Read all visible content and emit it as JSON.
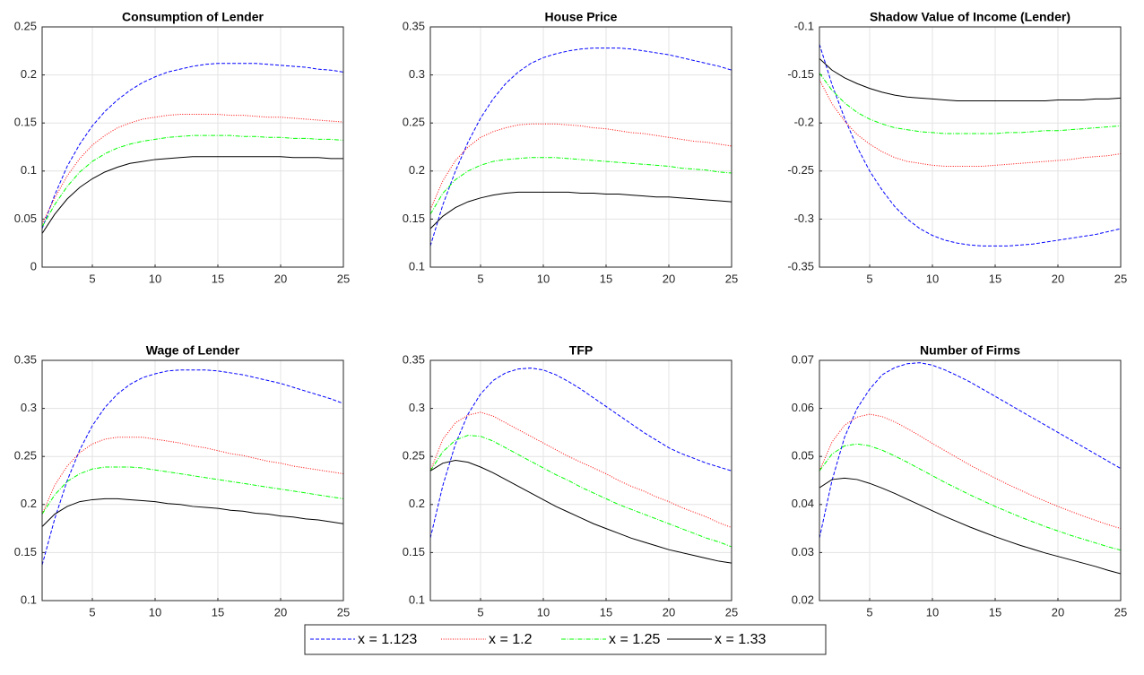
{
  "legend": {
    "entries": [
      {
        "name": "x = 1.123",
        "color": "#0000ff"
      },
      {
        "name": "x = 1.2",
        "color": "#ff0000"
      },
      {
        "name": "x = 1.25",
        "color": "#00ff00"
      },
      {
        "name": "x = 1.33",
        "color": "#000000"
      }
    ]
  },
  "chart_data": [
    {
      "type": "line",
      "title": "Consumption of Lender",
      "grid": true,
      "x": [
        1,
        2,
        3,
        4,
        5,
        6,
        7,
        8,
        9,
        10,
        11,
        12,
        13,
        14,
        15,
        16,
        17,
        18,
        19,
        20,
        21,
        22,
        23,
        24,
        25
      ],
      "xlim": [
        1,
        25
      ],
      "xticks": [
        5,
        10,
        15,
        20,
        25
      ],
      "ylim": [
        0,
        0.25
      ],
      "yticks": [
        0,
        0.05,
        0.1,
        0.15,
        0.2,
        0.25
      ],
      "series": [
        {
          "values": [
            0.04,
            0.075,
            0.105,
            0.128,
            0.147,
            0.162,
            0.174,
            0.184,
            0.192,
            0.198,
            0.203,
            0.206,
            0.209,
            0.211,
            0.212,
            0.212,
            0.212,
            0.212,
            0.211,
            0.21,
            0.209,
            0.208,
            0.206,
            0.205,
            0.203
          ]
        },
        {
          "values": [
            0.045,
            0.072,
            0.095,
            0.113,
            0.127,
            0.137,
            0.145,
            0.15,
            0.154,
            0.156,
            0.158,
            0.159,
            0.159,
            0.159,
            0.159,
            0.158,
            0.158,
            0.157,
            0.156,
            0.156,
            0.155,
            0.154,
            0.153,
            0.152,
            0.151
          ]
        },
        {
          "values": [
            0.042,
            0.065,
            0.084,
            0.099,
            0.11,
            0.118,
            0.124,
            0.128,
            0.131,
            0.133,
            0.135,
            0.136,
            0.137,
            0.137,
            0.137,
            0.137,
            0.136,
            0.136,
            0.135,
            0.135,
            0.134,
            0.134,
            0.133,
            0.133,
            0.132
          ]
        },
        {
          "values": [
            0.035,
            0.055,
            0.071,
            0.083,
            0.092,
            0.099,
            0.104,
            0.108,
            0.11,
            0.112,
            0.113,
            0.114,
            0.115,
            0.115,
            0.115,
            0.115,
            0.115,
            0.115,
            0.115,
            0.115,
            0.114,
            0.114,
            0.114,
            0.113,
            0.113
          ]
        }
      ]
    },
    {
      "type": "line",
      "title": "House Price",
      "grid": true,
      "x": [
        1,
        2,
        3,
        4,
        5,
        6,
        7,
        8,
        9,
        10,
        11,
        12,
        13,
        14,
        15,
        16,
        17,
        18,
        19,
        20,
        21,
        22,
        23,
        24,
        25
      ],
      "xlim": [
        1,
        25
      ],
      "xticks": [
        5,
        10,
        15,
        20,
        25
      ],
      "ylim": [
        0.1,
        0.35
      ],
      "yticks": [
        0.1,
        0.15,
        0.2,
        0.25,
        0.3,
        0.35
      ],
      "series": [
        {
          "values": [
            0.122,
            0.165,
            0.2,
            0.23,
            0.255,
            0.275,
            0.291,
            0.303,
            0.312,
            0.318,
            0.322,
            0.325,
            0.327,
            0.328,
            0.328,
            0.328,
            0.327,
            0.325,
            0.323,
            0.321,
            0.318,
            0.315,
            0.312,
            0.309,
            0.305
          ]
        },
        {
          "values": [
            0.16,
            0.19,
            0.211,
            0.225,
            0.235,
            0.241,
            0.245,
            0.248,
            0.249,
            0.249,
            0.249,
            0.248,
            0.247,
            0.245,
            0.244,
            0.242,
            0.24,
            0.239,
            0.237,
            0.235,
            0.233,
            0.231,
            0.23,
            0.228,
            0.226
          ]
        },
        {
          "values": [
            0.155,
            0.177,
            0.191,
            0.2,
            0.206,
            0.21,
            0.212,
            0.213,
            0.214,
            0.214,
            0.214,
            0.213,
            0.212,
            0.211,
            0.21,
            0.209,
            0.208,
            0.207,
            0.206,
            0.205,
            0.203,
            0.202,
            0.201,
            0.199,
            0.198
          ]
        },
        {
          "values": [
            0.14,
            0.153,
            0.162,
            0.168,
            0.172,
            0.175,
            0.177,
            0.178,
            0.178,
            0.178,
            0.178,
            0.178,
            0.177,
            0.177,
            0.176,
            0.176,
            0.175,
            0.174,
            0.173,
            0.173,
            0.172,
            0.171,
            0.17,
            0.169,
            0.168
          ]
        }
      ]
    },
    {
      "type": "line",
      "title": "Shadow Value of Income (Lender)",
      "grid": true,
      "x": [
        1,
        2,
        3,
        4,
        5,
        6,
        7,
        8,
        9,
        10,
        11,
        12,
        13,
        14,
        15,
        16,
        17,
        18,
        19,
        20,
        21,
        22,
        23,
        24,
        25
      ],
      "xlim": [
        1,
        25
      ],
      "xticks": [
        5,
        10,
        15,
        20,
        25
      ],
      "ylim": [
        -0.35,
        -0.1
      ],
      "yticks": [
        -0.35,
        -0.3,
        -0.25,
        -0.2,
        -0.15,
        -0.1
      ],
      "series": [
        {
          "values": [
            -0.118,
            -0.16,
            -0.195,
            -0.225,
            -0.25,
            -0.27,
            -0.287,
            -0.3,
            -0.31,
            -0.317,
            -0.322,
            -0.325,
            -0.327,
            -0.328,
            -0.328,
            -0.328,
            -0.327,
            -0.326,
            -0.324,
            -0.322,
            -0.32,
            -0.318,
            -0.316,
            -0.313,
            -0.31
          ]
        },
        {
          "values": [
            -0.155,
            -0.18,
            -0.198,
            -0.212,
            -0.222,
            -0.23,
            -0.236,
            -0.24,
            -0.242,
            -0.244,
            -0.245,
            -0.245,
            -0.245,
            -0.245,
            -0.244,
            -0.243,
            -0.242,
            -0.241,
            -0.24,
            -0.239,
            -0.238,
            -0.236,
            -0.235,
            -0.234,
            -0.232
          ]
        },
        {
          "values": [
            -0.148,
            -0.166,
            -0.179,
            -0.189,
            -0.196,
            -0.201,
            -0.205,
            -0.207,
            -0.209,
            -0.21,
            -0.211,
            -0.211,
            -0.211,
            -0.211,
            -0.211,
            -0.21,
            -0.21,
            -0.209,
            -0.208,
            -0.208,
            -0.207,
            -0.206,
            -0.205,
            -0.204,
            -0.203
          ]
        },
        {
          "values": [
            -0.133,
            -0.145,
            -0.153,
            -0.159,
            -0.164,
            -0.168,
            -0.171,
            -0.173,
            -0.174,
            -0.175,
            -0.176,
            -0.177,
            -0.177,
            -0.177,
            -0.177,
            -0.177,
            -0.177,
            -0.177,
            -0.177,
            -0.176,
            -0.176,
            -0.176,
            -0.175,
            -0.175,
            -0.174
          ]
        }
      ]
    },
    {
      "type": "line",
      "title": "Wage of Lender",
      "grid": true,
      "x": [
        1,
        2,
        3,
        4,
        5,
        6,
        7,
        8,
        9,
        10,
        11,
        12,
        13,
        14,
        15,
        16,
        17,
        18,
        19,
        20,
        21,
        22,
        23,
        24,
        25
      ],
      "xlim": [
        1,
        25
      ],
      "xticks": [
        5,
        10,
        15,
        20,
        25
      ],
      "ylim": [
        0.1,
        0.35
      ],
      "yticks": [
        0.1,
        0.15,
        0.2,
        0.25,
        0.3,
        0.35
      ],
      "series": [
        {
          "values": [
            0.137,
            0.185,
            0.225,
            0.257,
            0.282,
            0.301,
            0.315,
            0.325,
            0.332,
            0.336,
            0.339,
            0.34,
            0.34,
            0.34,
            0.339,
            0.337,
            0.335,
            0.332,
            0.329,
            0.326,
            0.322,
            0.318,
            0.314,
            0.31,
            0.305
          ]
        },
        {
          "values": [
            0.19,
            0.22,
            0.24,
            0.254,
            0.263,
            0.268,
            0.27,
            0.27,
            0.27,
            0.268,
            0.266,
            0.264,
            0.261,
            0.259,
            0.256,
            0.253,
            0.251,
            0.248,
            0.245,
            0.243,
            0.24,
            0.238,
            0.236,
            0.234,
            0.232
          ]
        },
        {
          "values": [
            0.19,
            0.21,
            0.224,
            0.232,
            0.237,
            0.239,
            0.239,
            0.239,
            0.238,
            0.236,
            0.234,
            0.232,
            0.23,
            0.228,
            0.226,
            0.224,
            0.222,
            0.22,
            0.218,
            0.216,
            0.214,
            0.212,
            0.21,
            0.208,
            0.206
          ]
        },
        {
          "values": [
            0.177,
            0.19,
            0.198,
            0.203,
            0.205,
            0.206,
            0.206,
            0.205,
            0.204,
            0.203,
            0.201,
            0.2,
            0.198,
            0.197,
            0.196,
            0.194,
            0.193,
            0.191,
            0.19,
            0.188,
            0.187,
            0.185,
            0.184,
            0.182,
            0.18
          ]
        }
      ]
    },
    {
      "type": "line",
      "title": "TFP",
      "grid": true,
      "x": [
        1,
        2,
        3,
        4,
        5,
        6,
        7,
        8,
        9,
        10,
        11,
        12,
        13,
        14,
        15,
        16,
        17,
        18,
        19,
        20,
        21,
        22,
        23,
        24,
        25
      ],
      "xlim": [
        1,
        25
      ],
      "xticks": [
        5,
        10,
        15,
        20,
        25
      ],
      "ylim": [
        0.1,
        0.35
      ],
      "yticks": [
        0.1,
        0.15,
        0.2,
        0.25,
        0.3,
        0.35
      ],
      "series": [
        {
          "values": [
            0.165,
            0.22,
            0.263,
            0.294,
            0.315,
            0.329,
            0.337,
            0.341,
            0.342,
            0.34,
            0.335,
            0.328,
            0.32,
            0.311,
            0.302,
            0.293,
            0.284,
            0.275,
            0.267,
            0.259,
            0.253,
            0.248,
            0.243,
            0.239,
            0.235
          ]
        },
        {
          "values": [
            0.235,
            0.268,
            0.285,
            0.293,
            0.296,
            0.292,
            0.285,
            0.278,
            0.271,
            0.264,
            0.257,
            0.25,
            0.244,
            0.238,
            0.232,
            0.225,
            0.219,
            0.214,
            0.208,
            0.203,
            0.197,
            0.192,
            0.187,
            0.181,
            0.176
          ]
        },
        {
          "values": [
            0.235,
            0.255,
            0.267,
            0.272,
            0.271,
            0.266,
            0.259,
            0.252,
            0.245,
            0.238,
            0.231,
            0.225,
            0.218,
            0.212,
            0.206,
            0.2,
            0.195,
            0.19,
            0.185,
            0.18,
            0.175,
            0.17,
            0.165,
            0.161,
            0.156
          ]
        },
        {
          "values": [
            0.235,
            0.243,
            0.246,
            0.244,
            0.239,
            0.233,
            0.226,
            0.219,
            0.212,
            0.205,
            0.198,
            0.192,
            0.186,
            0.18,
            0.175,
            0.17,
            0.165,
            0.161,
            0.157,
            0.153,
            0.15,
            0.147,
            0.144,
            0.141,
            0.139
          ]
        }
      ]
    },
    {
      "type": "line",
      "title": "Number of Firms",
      "grid": true,
      "x": [
        1,
        2,
        3,
        4,
        5,
        6,
        7,
        8,
        9,
        10,
        11,
        12,
        13,
        14,
        15,
        16,
        17,
        18,
        19,
        20,
        21,
        22,
        23,
        24,
        25
      ],
      "xlim": [
        1,
        25
      ],
      "xticks": [
        5,
        10,
        15,
        20,
        25
      ],
      "ylim": [
        0.02,
        0.07
      ],
      "yticks": [
        0.02,
        0.03,
        0.04,
        0.05,
        0.06,
        0.07
      ],
      "series": [
        {
          "values": [
            0.033,
            0.045,
            0.054,
            0.06,
            0.064,
            0.067,
            0.0685,
            0.0693,
            0.0695,
            0.069,
            0.068,
            0.0668,
            0.0655,
            0.064,
            0.0625,
            0.061,
            0.0595,
            0.058,
            0.0565,
            0.055,
            0.0535,
            0.052,
            0.0505,
            0.049,
            0.0475
          ]
        },
        {
          "values": [
            0.047,
            0.053,
            0.0565,
            0.0582,
            0.0588,
            0.0583,
            0.0572,
            0.0558,
            0.0543,
            0.0527,
            0.0512,
            0.0497,
            0.0482,
            0.0468,
            0.0455,
            0.0442,
            0.043,
            0.0418,
            0.0407,
            0.0396,
            0.0386,
            0.0376,
            0.0367,
            0.0358,
            0.035
          ]
        },
        {
          "values": [
            0.047,
            0.0505,
            0.0522,
            0.0526,
            0.0522,
            0.0513,
            0.0501,
            0.0488,
            0.0474,
            0.046,
            0.0446,
            0.0433,
            0.042,
            0.0408,
            0.0396,
            0.0385,
            0.0374,
            0.0364,
            0.0354,
            0.0345,
            0.0336,
            0.0328,
            0.032,
            0.0312,
            0.0305
          ]
        },
        {
          "values": [
            0.0435,
            0.0452,
            0.0455,
            0.0452,
            0.0444,
            0.0434,
            0.0423,
            0.0411,
            0.0399,
            0.0387,
            0.0375,
            0.0364,
            0.0353,
            0.0343,
            0.0333,
            0.0324,
            0.0315,
            0.0307,
            0.0299,
            0.0292,
            0.0285,
            0.0278,
            0.0271,
            0.0263,
            0.0256
          ]
        }
      ]
    }
  ]
}
